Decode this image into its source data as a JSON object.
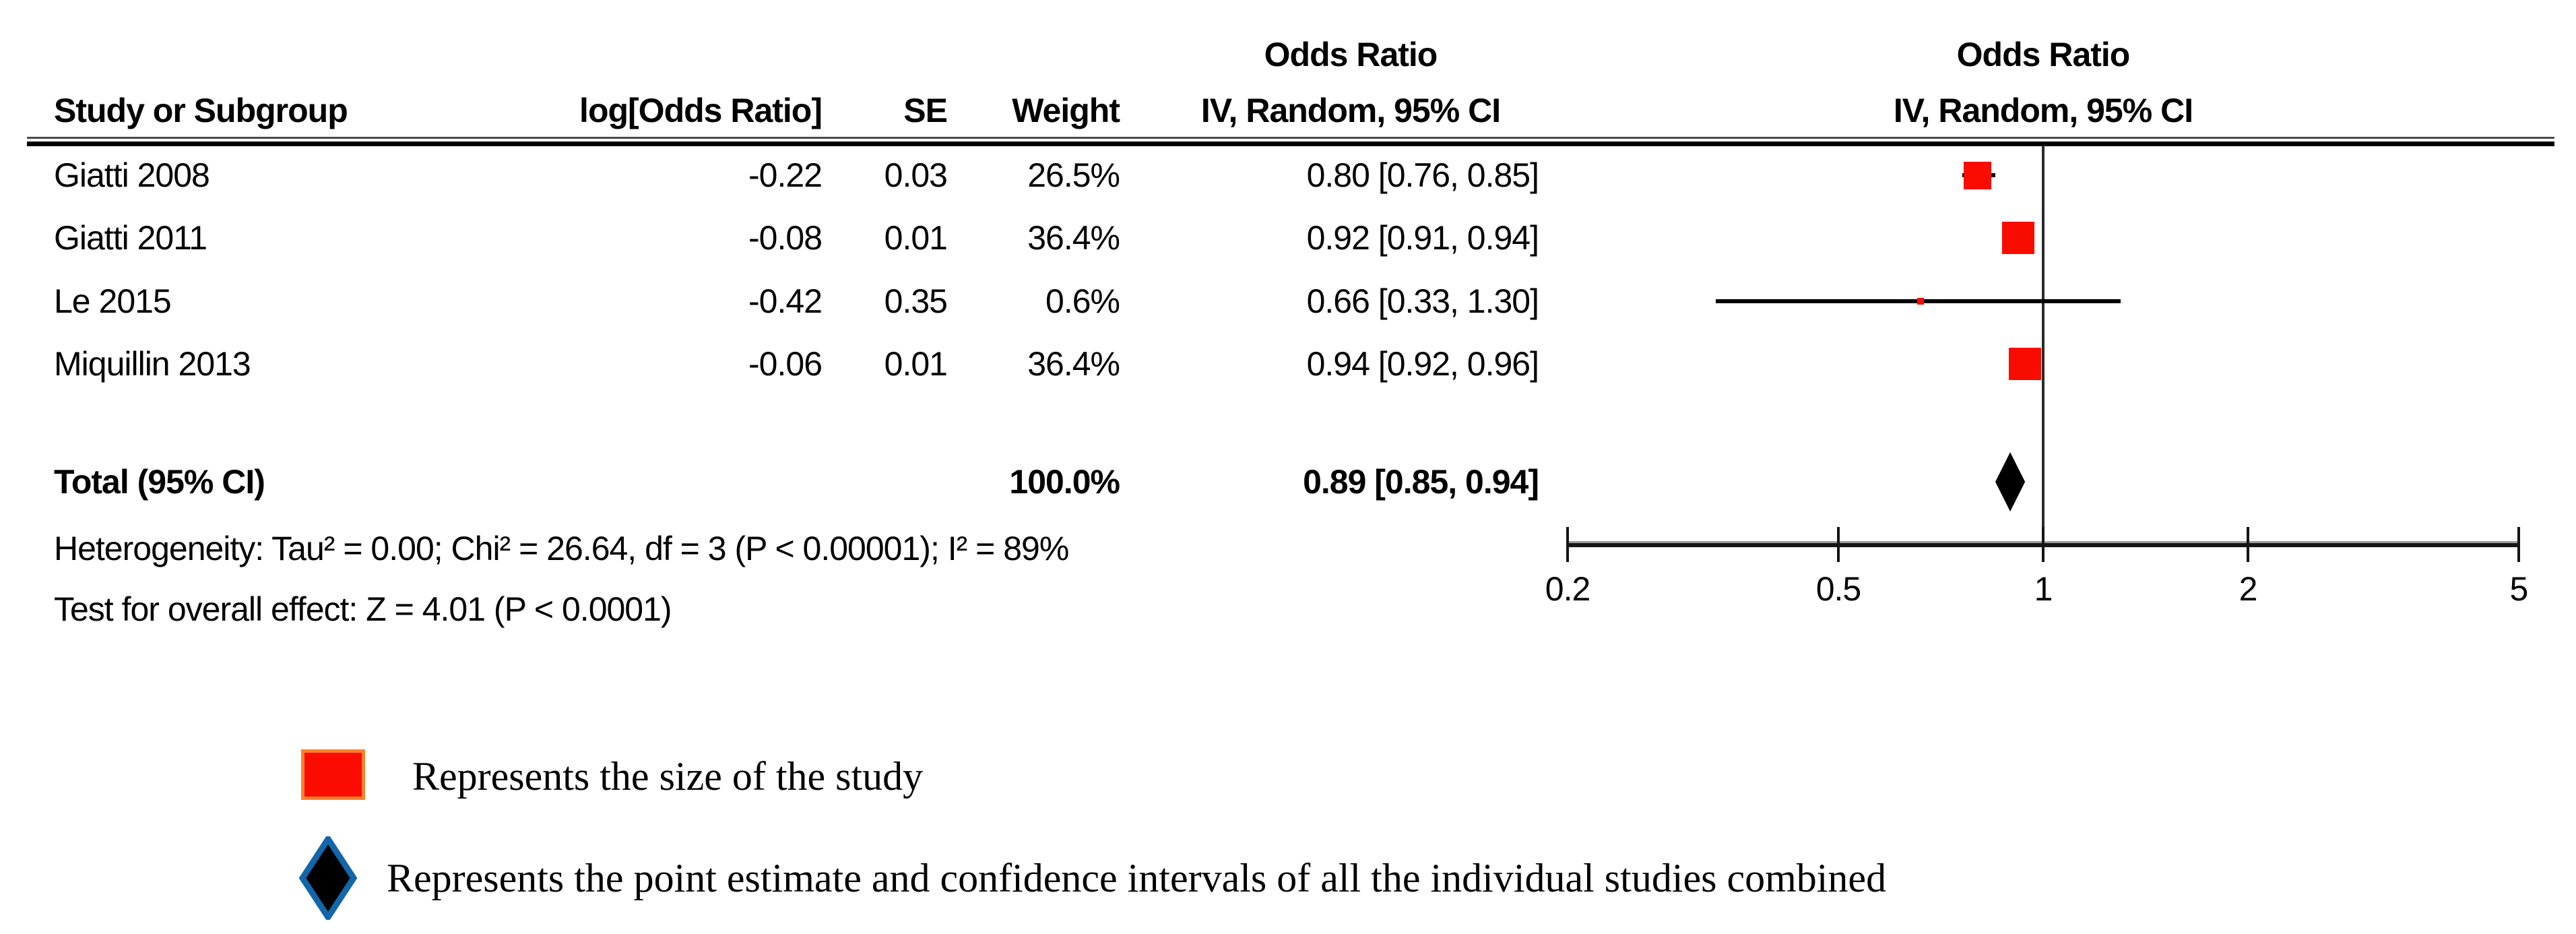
{
  "table": {
    "effect_column_title": "Odds Ratio",
    "headers": {
      "study": "Study or Subgroup",
      "log_or": "log[Odds Ratio]",
      "se": "SE",
      "weight": "Weight",
      "effect_ci": "IV, Random, 95% CI"
    },
    "total": {
      "label": "Total (95% CI)",
      "weight": "100.0%",
      "ci_text": "0.89 [0.85, 0.94]"
    },
    "heterogeneity": "Heterogeneity: Tau² = 0.00; Chi² = 26.64, df = 3 (P < 0.00001); I² = 89%",
    "overall_effect": "Test for overall effect: Z = 4.01 (P < 0.0001)"
  },
  "plot_header": {
    "title": "Odds Ratio",
    "subtitle": "IV, Random, 95% CI"
  },
  "chart_data": {
    "type": "forest",
    "effect_measure": "Odds Ratio",
    "model": "IV, Random, 95% CI",
    "x_scale": "log",
    "x_ticks": [
      0.2,
      0.5,
      1,
      2,
      5
    ],
    "x_tick_labels": [
      "0.2",
      "0.5",
      "1",
      "2",
      "5"
    ],
    "xlim": [
      0.2,
      5
    ],
    "studies": [
      {
        "study": "Giatti 2008",
        "log_or": "-0.22",
        "se": "0.03",
        "weight_text": "26.5%",
        "weight": 26.5,
        "ci_text": "0.80 [0.76, 0.85]",
        "or": 0.8,
        "ci_low": 0.76,
        "ci_high": 0.85
      },
      {
        "study": "Giatti 2011",
        "log_or": "-0.08",
        "se": "0.01",
        "weight_text": "36.4%",
        "weight": 36.4,
        "ci_text": "0.92 [0.91, 0.94]",
        "or": 0.92,
        "ci_low": 0.91,
        "ci_high": 0.94
      },
      {
        "study": "Le 2015",
        "log_or": "-0.42",
        "se": "0.35",
        "weight_text": "0.6%",
        "weight": 0.6,
        "ci_text": "0.66 [0.33, 1.30]",
        "or": 0.66,
        "ci_low": 0.33,
        "ci_high": 1.3
      },
      {
        "study": "Miquillin 2013",
        "log_or": "-0.06",
        "se": "0.01",
        "weight_text": "36.4%",
        "weight": 36.4,
        "ci_text": "0.94 [0.92, 0.96]",
        "or": 0.94,
        "ci_low": 0.92,
        "ci_high": 0.96
      }
    ],
    "total": {
      "or": 0.89,
      "ci_low": 0.85,
      "ci_high": 0.94,
      "weight": 100.0
    }
  },
  "legend": {
    "items": [
      {
        "marker": "red-square",
        "text": "Represents the size of the study"
      },
      {
        "marker": "black-diamond",
        "text": "Represents the point estimate and confidence intervals of all the individual studies combined"
      }
    ]
  },
  "colors": {
    "study_marker_red": "#f90c00",
    "legend_square_fill": "#fa0d00",
    "legend_square_border": "#ff7f2a",
    "diamond_fill": "#000000",
    "legend_diamond_border": "#1366a9",
    "text": "#000000"
  }
}
